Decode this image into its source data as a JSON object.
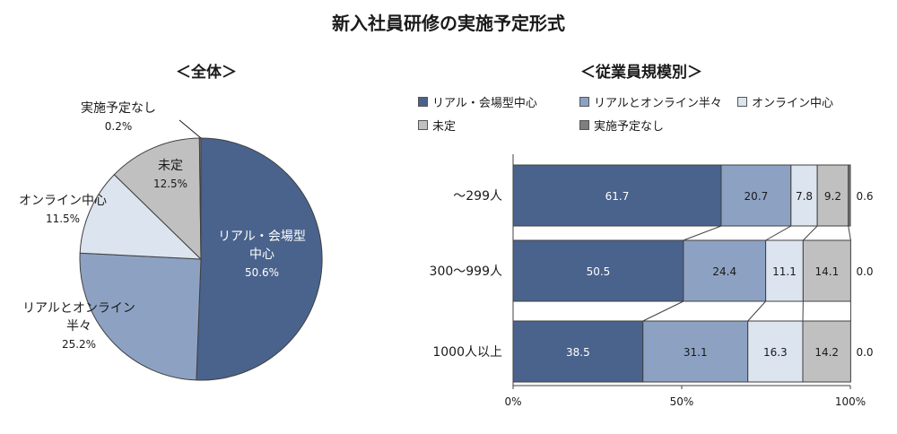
{
  "title": "新入社員研修の実施予定形式",
  "chart_data": [
    {
      "type": "pie",
      "title": "＜全体＞",
      "slices": [
        {
          "label": "リアル・会場型中心",
          "value": 50.6,
          "display": "50.6%",
          "color": "#4a638c"
        },
        {
          "label": "リアルとオンライン半々",
          "value": 25.2,
          "display": "25.2%",
          "color": "#8da2c3"
        },
        {
          "label": "オンライン中心",
          "value": 11.5,
          "display": "11.5%",
          "color": "#dbe4ef"
        },
        {
          "label": "未定",
          "value": 12.5,
          "display": "12.5%",
          "color": "#c0c0c0"
        },
        {
          "label": "実施予定なし",
          "value": 0.2,
          "display": "0.2%",
          "color": "#7f7f7f"
        }
      ]
    },
    {
      "type": "bar",
      "orientation": "horizontal",
      "stacked": true,
      "title": "＜従業員規模別＞",
      "categories": [
        "～299人",
        "300～999人",
        "1000人以上"
      ],
      "series": [
        {
          "name": "リアル・会場型中心",
          "values": [
            61.7,
            50.5,
            38.5
          ],
          "labels": [
            "61.7",
            "50.5",
            "38.5"
          ],
          "color": "#4a638c"
        },
        {
          "name": "リアルとオンライン半々",
          "values": [
            20.7,
            24.4,
            31.1
          ],
          "labels": [
            "20.7",
            "24.4",
            "31.1"
          ],
          "color": "#8da2c3"
        },
        {
          "name": "オンライン中心",
          "values": [
            7.8,
            11.1,
            16.3
          ],
          "labels": [
            "7.8",
            "11.1",
            "16.3"
          ],
          "color": "#dbe4ef"
        },
        {
          "name": "未定",
          "values": [
            9.2,
            14.1,
            14.2
          ],
          "labels": [
            "9.2",
            "14.1",
            "14.2"
          ],
          "color": "#c0c0c0"
        },
        {
          "name": "実施予定なし",
          "values": [
            0.6,
            0.0,
            0.0
          ],
          "labels": [
            "0.6",
            "0.0",
            "0.0"
          ],
          "color": "#7f7f7f"
        }
      ],
      "xlim": [
        0,
        100
      ],
      "xticks": [
        "0%",
        "50%",
        "100%"
      ],
      "legend_position": "top"
    }
  ]
}
